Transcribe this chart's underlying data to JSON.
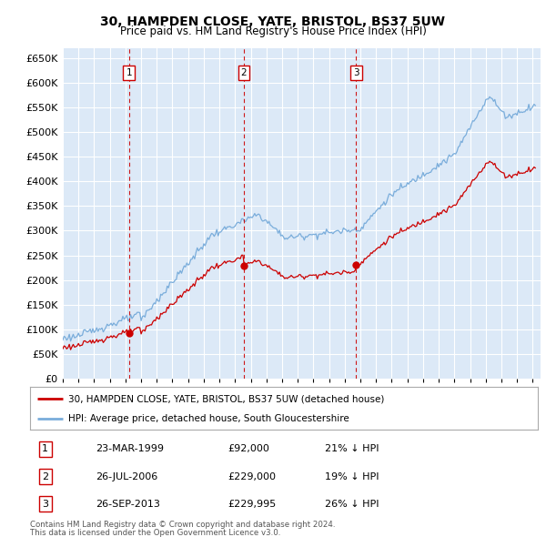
{
  "title": "30, HAMPDEN CLOSE, YATE, BRISTOL, BS37 5UW",
  "subtitle": "Price paid vs. HM Land Registry's House Price Index (HPI)",
  "plot_background": "#dce9f7",
  "ylim": [
    0,
    670000
  ],
  "yticks": [
    0,
    50000,
    100000,
    150000,
    200000,
    250000,
    300000,
    350000,
    400000,
    450000,
    500000,
    550000,
    600000,
    650000
  ],
  "xlim_start": 1995.0,
  "xlim_end": 2025.5,
  "transactions": [
    {
      "num": 1,
      "date": "23-MAR-1999",
      "price": 92000,
      "year": 1999.22,
      "hpi_pct": "21% ↓ HPI"
    },
    {
      "num": 2,
      "date": "26-JUL-2006",
      "price": 229000,
      "year": 2006.56,
      "hpi_pct": "19% ↓ HPI"
    },
    {
      "num": 3,
      "date": "26-SEP-2013",
      "price": 229995,
      "year": 2013.73,
      "hpi_pct": "26% ↓ HPI"
    }
  ],
  "legend_line1": "30, HAMPDEN CLOSE, YATE, BRISTOL, BS37 5UW (detached house)",
  "legend_line2": "HPI: Average price, detached house, South Gloucestershire",
  "footer1": "Contains HM Land Registry data © Crown copyright and database right 2024.",
  "footer2": "This data is licensed under the Open Government Licence v3.0.",
  "red_color": "#cc0000",
  "blue_color": "#7aaddb",
  "marker_box_color": "#cc0000",
  "grid_color": "#ffffff",
  "title_fontsize": 10,
  "subtitle_fontsize": 8.5
}
